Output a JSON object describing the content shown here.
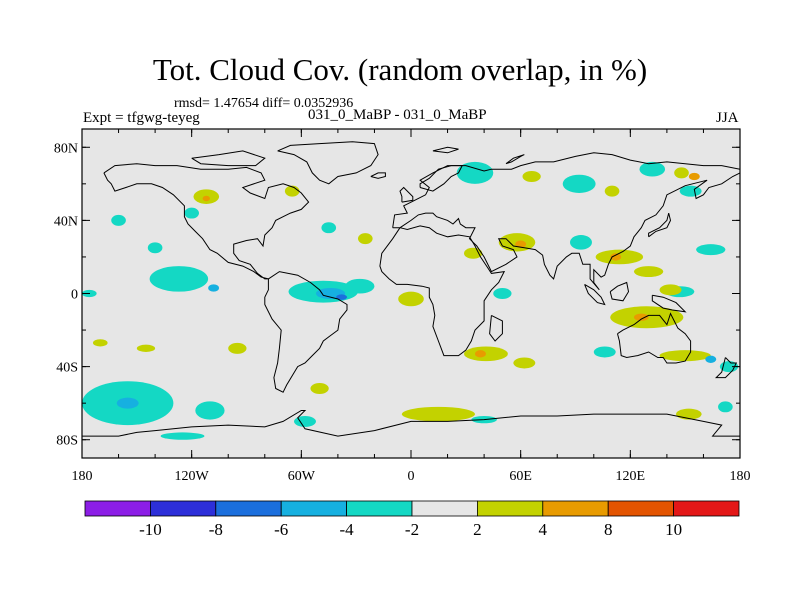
{
  "title": "Tot. Cloud Cov. (random overlap, in %)",
  "stats": "rmsd= 1.47654 diff= 0.0352936",
  "experiment": "Expt = tfgwg-teyeg",
  "difference_name": "031_0_MaBP - 031_0_MaBP",
  "season": "JJA",
  "map": {
    "lon_range": [
      -180,
      180
    ],
    "lat_range": [
      -90,
      90
    ],
    "x_ticks": [
      {
        "value": -180,
        "label": "180"
      },
      {
        "value": -120,
        "label": "120W"
      },
      {
        "value": -60,
        "label": "60W"
      },
      {
        "value": 0,
        "label": "0"
      },
      {
        "value": 60,
        "label": "60E"
      },
      {
        "value": 120,
        "label": "120E"
      },
      {
        "value": 180,
        "label": "180"
      }
    ],
    "y_ticks": [
      {
        "value": 80,
        "label": "80N"
      },
      {
        "value": 40,
        "label": "40N"
      },
      {
        "value": 0,
        "label": "0"
      },
      {
        "value": -40,
        "label": "40S"
      },
      {
        "value": -80,
        "label": "80S"
      }
    ],
    "background_color": "#e6e6e6",
    "coastline_color": "#000000",
    "blobs": [
      {
        "lon": -127,
        "lat": 8,
        "rlon": 16,
        "rlat": 7,
        "cls": "n2"
      },
      {
        "lon": -108,
        "lat": 3,
        "rlon": 3,
        "rlat": 2,
        "cls": "n4"
      },
      {
        "lon": -48,
        "lat": 1,
        "rlon": 19,
        "rlat": 6,
        "cls": "n2"
      },
      {
        "lon": -44,
        "lat": 0,
        "rlon": 8,
        "rlat": 3,
        "cls": "n4"
      },
      {
        "lon": -38,
        "lat": -2,
        "rlon": 3,
        "rlat": 1.5,
        "cls": "n6"
      },
      {
        "lon": -28,
        "lat": 4,
        "rlon": 8,
        "rlat": 4,
        "cls": "n2"
      },
      {
        "lon": -140,
        "lat": 25,
        "rlon": 4,
        "rlat": 3,
        "cls": "n2"
      },
      {
        "lon": -160,
        "lat": 40,
        "rlon": 4,
        "rlat": 3,
        "cls": "n2"
      },
      {
        "lon": -120,
        "lat": 44,
        "rlon": 4,
        "rlat": 3,
        "cls": "n2"
      },
      {
        "lon": -112,
        "lat": 53,
        "rlon": 7,
        "rlat": 4,
        "cls": "p2"
      },
      {
        "lon": -112,
        "lat": 52,
        "rlon": 2,
        "rlat": 1.5,
        "cls": "p4"
      },
      {
        "lon": -65,
        "lat": 56,
        "rlon": 4,
        "rlat": 3,
        "cls": "p2"
      },
      {
        "lon": -25,
        "lat": 30,
        "rlon": 4,
        "rlat": 3,
        "cls": "p2"
      },
      {
        "lon": 0,
        "lat": -3,
        "rlon": 7,
        "rlat": 4,
        "cls": "p2"
      },
      {
        "lon": -45,
        "lat": 36,
        "rlon": 4,
        "rlat": 3,
        "cls": "n2"
      },
      {
        "lon": 35,
        "lat": 66,
        "rlon": 10,
        "rlat": 6,
        "cls": "n2"
      },
      {
        "lon": 66,
        "lat": 64,
        "rlon": 5,
        "rlat": 3,
        "cls": "p2"
      },
      {
        "lon": 92,
        "lat": 60,
        "rlon": 9,
        "rlat": 5,
        "cls": "n2"
      },
      {
        "lon": 110,
        "lat": 56,
        "rlon": 4,
        "rlat": 3,
        "cls": "p2"
      },
      {
        "lon": 132,
        "lat": 68,
        "rlon": 7,
        "rlat": 4,
        "cls": "n2"
      },
      {
        "lon": 148,
        "lat": 66,
        "rlon": 4,
        "rlat": 3,
        "cls": "p2"
      },
      {
        "lon": 153,
        "lat": 56,
        "rlon": 6,
        "rlat": 3,
        "cls": "n2"
      },
      {
        "lon": 155,
        "lat": 64,
        "rlon": 3,
        "rlat": 2,
        "cls": "p4"
      },
      {
        "lon": 164,
        "lat": 24,
        "rlon": 8,
        "rlat": 3,
        "cls": "n2"
      },
      {
        "lon": 147,
        "lat": 1,
        "rlon": 8,
        "rlat": 3,
        "cls": "n2"
      },
      {
        "lon": 58,
        "lat": 28,
        "rlon": 10,
        "rlat": 5,
        "cls": "p2"
      },
      {
        "lon": 60,
        "lat": 27,
        "rlon": 3,
        "rlat": 2,
        "cls": "p4"
      },
      {
        "lon": 34,
        "lat": 22,
        "rlon": 5,
        "rlat": 3,
        "cls": "p2"
      },
      {
        "lon": 50,
        "lat": 0,
        "rlon": 5,
        "rlat": 3,
        "cls": "n2"
      },
      {
        "lon": 93,
        "lat": 28,
        "rlon": 6,
        "rlat": 4,
        "cls": "n2"
      },
      {
        "lon": 114,
        "lat": 20,
        "rlon": 13,
        "rlat": 4,
        "cls": "p2"
      },
      {
        "lon": 112,
        "lat": 20,
        "rlon": 3,
        "rlat": 2,
        "cls": "p4"
      },
      {
        "lon": 130,
        "lat": 12,
        "rlon": 8,
        "rlat": 3,
        "cls": "p2"
      },
      {
        "lon": 142,
        "lat": 2,
        "rlon": 6,
        "rlat": 3,
        "cls": "p2"
      },
      {
        "lon": 129,
        "lat": -13,
        "rlon": 20,
        "rlat": 6,
        "cls": "p2"
      },
      {
        "lon": 126,
        "lat": -13,
        "rlon": 4,
        "rlat": 2,
        "cls": "p4"
      },
      {
        "lon": 106,
        "lat": -32,
        "rlon": 6,
        "rlat": 3,
        "cls": "n2"
      },
      {
        "lon": 150,
        "lat": -34,
        "rlon": 14,
        "rlat": 3,
        "cls": "p2"
      },
      {
        "lon": 174,
        "lat": -40,
        "rlon": 5,
        "rlat": 3,
        "cls": "n2"
      },
      {
        "lon": 164,
        "lat": -36,
        "rlon": 3,
        "rlat": 2,
        "cls": "n4"
      },
      {
        "lon": 41,
        "lat": -33,
        "rlon": 12,
        "rlat": 4,
        "cls": "p2"
      },
      {
        "lon": 38,
        "lat": -33,
        "rlon": 3,
        "rlat": 2,
        "cls": "p4"
      },
      {
        "lon": 62,
        "lat": -38,
        "rlon": 6,
        "rlat": 3,
        "cls": "p2"
      },
      {
        "lon": 15,
        "lat": -66,
        "rlon": 20,
        "rlat": 4,
        "cls": "p2"
      },
      {
        "lon": 40,
        "lat": -69,
        "rlon": 7,
        "rlat": 2,
        "cls": "n2"
      },
      {
        "lon": 152,
        "lat": -66,
        "rlon": 7,
        "rlat": 3,
        "cls": "p2"
      },
      {
        "lon": 172,
        "lat": -62,
        "rlon": 4,
        "rlat": 3,
        "cls": "n2"
      },
      {
        "lon": -155,
        "lat": -60,
        "rlon": 25,
        "rlat": 12,
        "cls": "n2"
      },
      {
        "lon": -155,
        "lat": -60,
        "rlon": 6,
        "rlat": 3,
        "cls": "n4"
      },
      {
        "lon": -110,
        "lat": -64,
        "rlon": 8,
        "rlat": 5,
        "cls": "n2"
      },
      {
        "lon": -125,
        "lat": -78,
        "rlon": 12,
        "rlat": 2,
        "cls": "n2"
      },
      {
        "lon": -95,
        "lat": -30,
        "rlon": 5,
        "rlat": 3,
        "cls": "p2"
      },
      {
        "lon": -145,
        "lat": -30,
        "rlon": 5,
        "rlat": 2,
        "cls": "p2"
      },
      {
        "lon": -170,
        "lat": -27,
        "rlon": 4,
        "rlat": 2,
        "cls": "p2"
      },
      {
        "lon": -50,
        "lat": -52,
        "rlon": 5,
        "rlat": 3,
        "cls": "p2"
      },
      {
        "lon": -58,
        "lat": -70,
        "rlon": 6,
        "rlat": 3,
        "cls": "n2"
      },
      {
        "lon": -176,
        "lat": 0,
        "rlon": 4,
        "rlat": 2,
        "cls": "n2"
      }
    ]
  },
  "colorbar": {
    "colors": [
      "#8c1ee6",
      "#2d2fd9",
      "#1b6fdd",
      "#16b0e0",
      "#14d8c4",
      "#e6e6e6",
      "#c3d200",
      "#e89b00",
      "#e35400",
      "#e31717"
    ],
    "labels": [
      "-10",
      "-8",
      "-6",
      "-4",
      "-2",
      "2",
      "4",
      "8",
      "10"
    ]
  },
  "legend_classes": {
    "n2": "#14d8c4",
    "n4": "#16b0e0",
    "n6": "#1b6fdd",
    "p2": "#c3d200",
    "p4": "#e89b00"
  }
}
